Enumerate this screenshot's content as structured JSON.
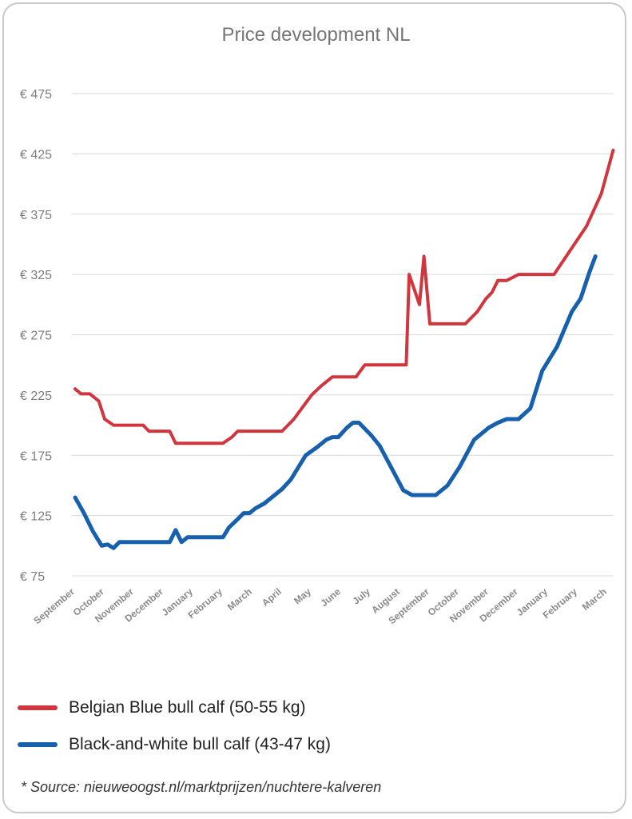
{
  "chart_data": {
    "type": "line",
    "title": "Price development NL",
    "xlabel": "",
    "ylabel": "",
    "ylim": [
      75,
      475
    ],
    "yticks": [
      75,
      125,
      175,
      225,
      275,
      325,
      375,
      425,
      475
    ],
    "ytick_labels": [
      "€ 75",
      "€ 125",
      "€ 175",
      "€ 225",
      "€ 275",
      "€ 325",
      "€ 375",
      "€ 425",
      "€ 475"
    ],
    "categories": [
      "September",
      "October",
      "November",
      "December",
      "January",
      "February",
      "March",
      "April",
      "May",
      "June",
      "July",
      "August",
      "September",
      "October",
      "November",
      "December",
      "January",
      "February",
      "March"
    ],
    "grid": "horizontal",
    "legend_position": "bottom",
    "series": [
      {
        "name": "Belgian Blue bull calf (50-55 kg)",
        "color": "#d0363e",
        "points": [
          [
            0,
            230
          ],
          [
            0.2,
            226
          ],
          [
            0.5,
            226
          ],
          [
            0.8,
            220
          ],
          [
            1.0,
            205
          ],
          [
            1.3,
            200
          ],
          [
            1.8,
            200
          ],
          [
            2.3,
            200
          ],
          [
            2.5,
            195
          ],
          [
            3.0,
            195
          ],
          [
            3.2,
            195
          ],
          [
            3.4,
            185
          ],
          [
            4.0,
            185
          ],
          [
            4.6,
            185
          ],
          [
            5.0,
            185
          ],
          [
            5.3,
            190
          ],
          [
            5.5,
            195
          ],
          [
            6.5,
            195
          ],
          [
            7.0,
            195
          ],
          [
            7.4,
            205
          ],
          [
            8.0,
            225
          ],
          [
            8.3,
            232
          ],
          [
            8.7,
            240
          ],
          [
            9.5,
            240
          ],
          [
            9.8,
            250
          ],
          [
            11.0,
            250
          ],
          [
            11.2,
            250
          ],
          [
            11.3,
            325
          ],
          [
            11.65,
            300
          ],
          [
            11.8,
            340
          ],
          [
            12.0,
            284
          ],
          [
            13.0,
            284
          ],
          [
            13.2,
            284
          ],
          [
            13.6,
            294
          ],
          [
            13.9,
            305
          ],
          [
            14.1,
            310
          ],
          [
            14.3,
            320
          ],
          [
            14.6,
            320
          ],
          [
            15.0,
            325
          ],
          [
            15.5,
            325
          ],
          [
            16.0,
            325
          ],
          [
            16.2,
            325
          ],
          [
            17.3,
            365
          ],
          [
            17.8,
            392
          ],
          [
            18.0,
            410
          ],
          [
            18.2,
            428
          ]
        ]
      },
      {
        "name": "Black-and-white bull calf (43-47 kg)",
        "color": "#1760ad",
        "points": [
          [
            0,
            140
          ],
          [
            0.3,
            127
          ],
          [
            0.6,
            112
          ],
          [
            0.9,
            100
          ],
          [
            1.1,
            101
          ],
          [
            1.3,
            98
          ],
          [
            1.5,
            103
          ],
          [
            2.0,
            103
          ],
          [
            2.5,
            103
          ],
          [
            3.0,
            103
          ],
          [
            3.2,
            103
          ],
          [
            3.4,
            113
          ],
          [
            3.6,
            103
          ],
          [
            3.8,
            107
          ],
          [
            4.5,
            107
          ],
          [
            5.0,
            107
          ],
          [
            5.2,
            115
          ],
          [
            5.5,
            122
          ],
          [
            5.7,
            127
          ],
          [
            5.9,
            127
          ],
          [
            6.1,
            131
          ],
          [
            6.4,
            135
          ],
          [
            7.0,
            147
          ],
          [
            7.3,
            155
          ],
          [
            7.8,
            175
          ],
          [
            8.2,
            182
          ],
          [
            8.5,
            188
          ],
          [
            8.7,
            190
          ],
          [
            8.9,
            190
          ],
          [
            9.2,
            198
          ],
          [
            9.4,
            202
          ],
          [
            9.6,
            202
          ],
          [
            10.0,
            192
          ],
          [
            10.3,
            183
          ],
          [
            10.8,
            160
          ],
          [
            11.1,
            146
          ],
          [
            11.4,
            142
          ],
          [
            11.7,
            142
          ],
          [
            12.2,
            142
          ],
          [
            12.6,
            150
          ],
          [
            13.0,
            165
          ],
          [
            13.5,
            188
          ],
          [
            14.0,
            198
          ],
          [
            14.3,
            202
          ],
          [
            14.6,
            205
          ],
          [
            15.0,
            205
          ],
          [
            15.4,
            214
          ],
          [
            15.8,
            245
          ],
          [
            16.3,
            265
          ],
          [
            16.8,
            294
          ],
          [
            17.1,
            305
          ],
          [
            17.4,
            327
          ],
          [
            17.6,
            340
          ]
        ]
      }
    ]
  },
  "source_note": "* Source: nieuweoogst.nl/marktprijzen/nuchtere-kalveren"
}
